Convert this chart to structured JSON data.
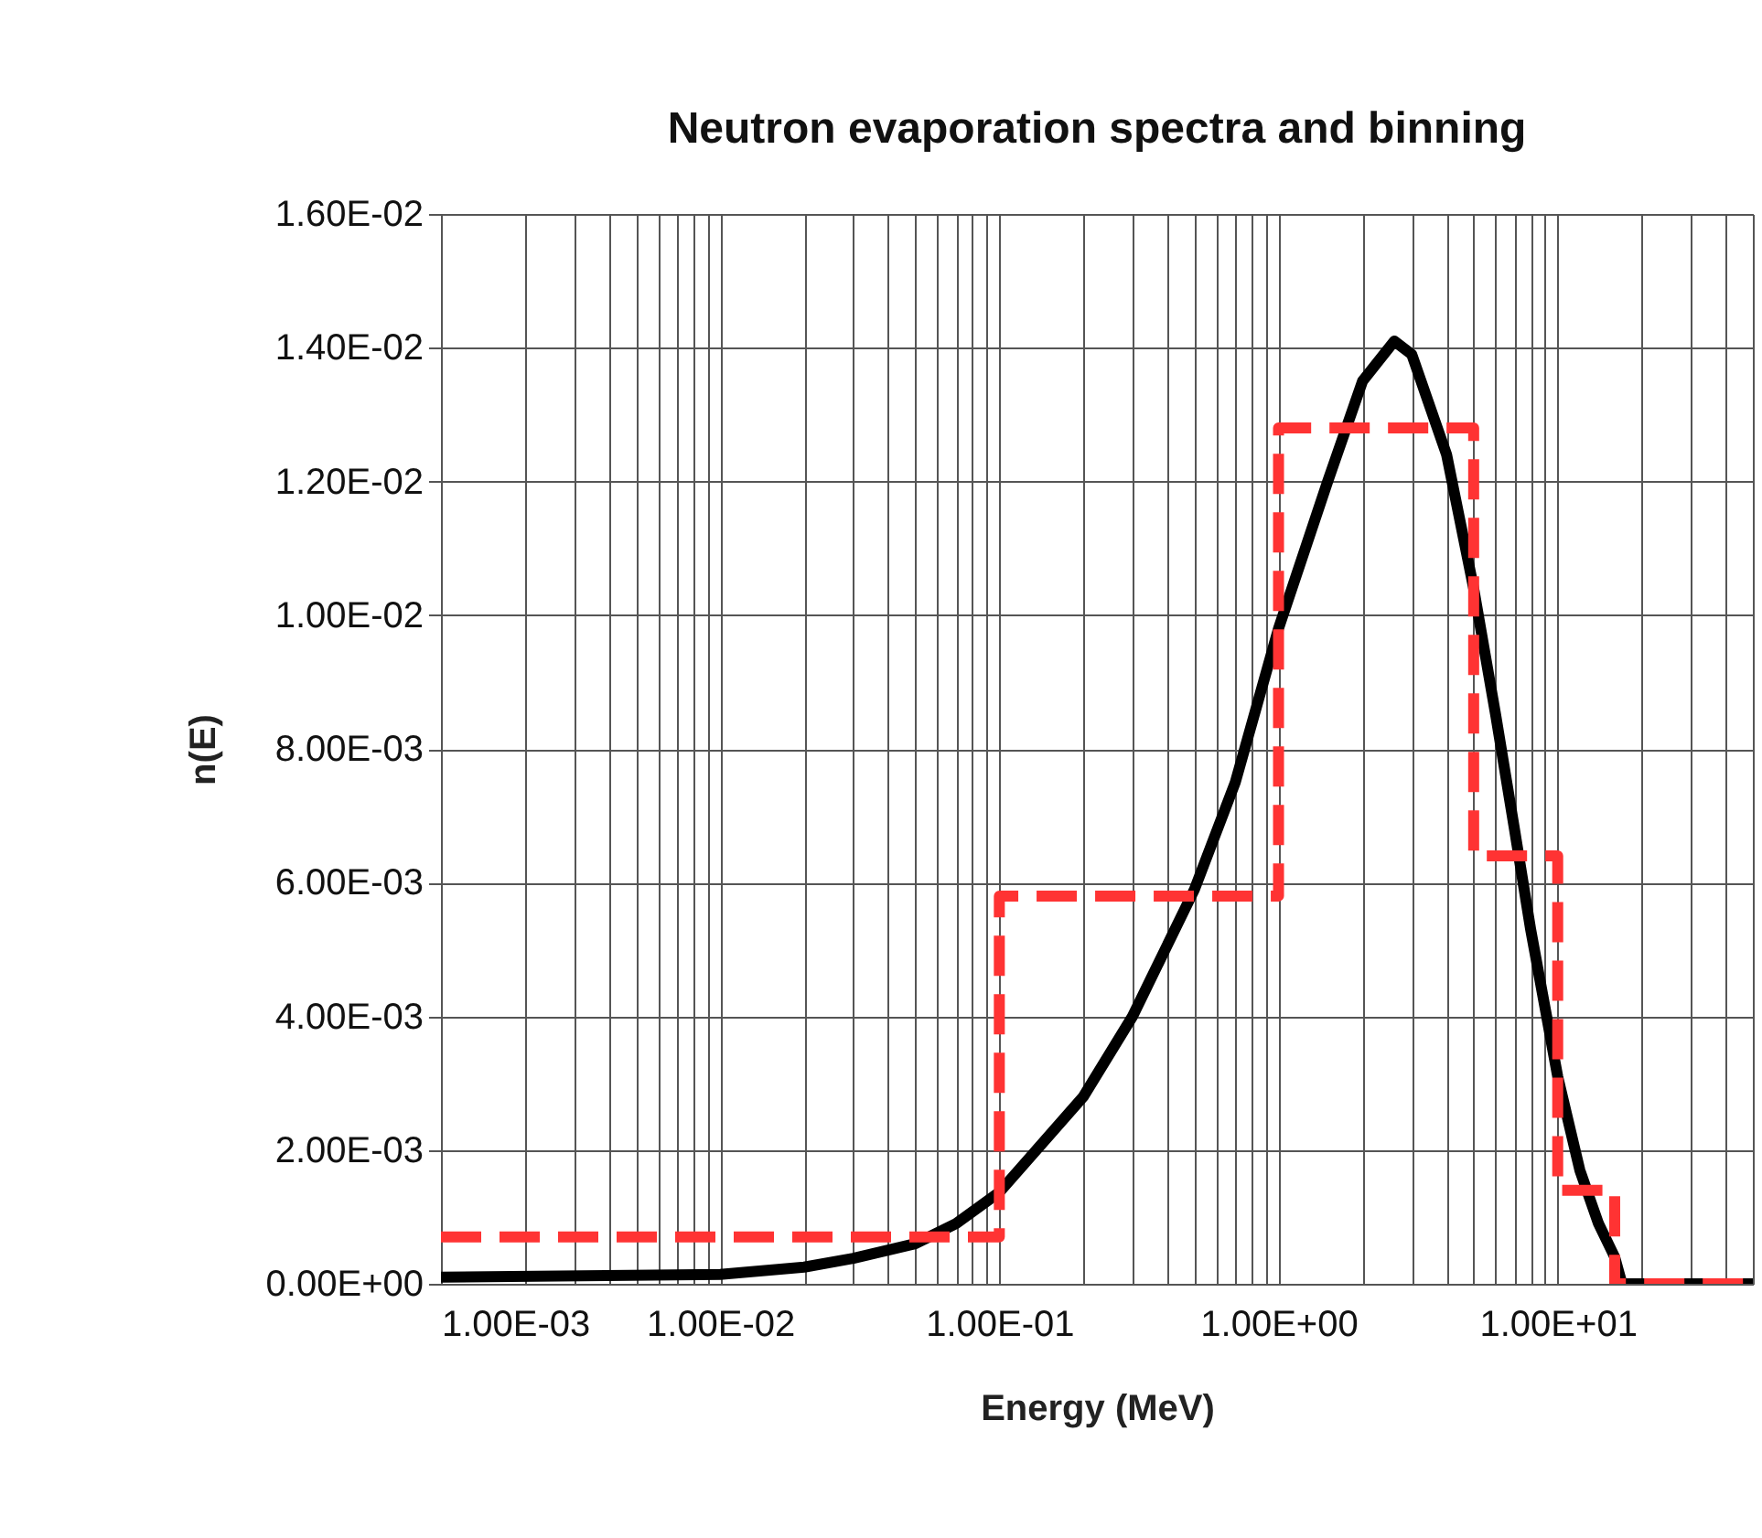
{
  "chart_data": {
    "type": "line",
    "title": "Neutron evaporation spectra and binning",
    "xlabel": "Energy (MeV)",
    "ylabel": "n(E)",
    "log": "x",
    "grid": true,
    "xlim": [
      0.001,
      50
    ],
    "xticks": [
      {
        "value": 0.001,
        "label": "1.00E-03"
      },
      {
        "value": 0.01,
        "label": "1.00E-02"
      },
      {
        "value": 0.1,
        "label": "1.00E-01"
      },
      {
        "value": 1,
        "label": "1.00E+00"
      },
      {
        "value": 10,
        "label": "1.00E+01"
      }
    ],
    "ylim": [
      0,
      0.016
    ],
    "yticks": [
      {
        "value": 0,
        "label": "0.00E+00"
      },
      {
        "value": 0.002,
        "label": "2.00E-03"
      },
      {
        "value": 0.004,
        "label": "4.00E-03"
      },
      {
        "value": 0.006,
        "label": "6.00E-03"
      },
      {
        "value": 0.008,
        "label": "8.00E-03"
      },
      {
        "value": 0.01,
        "label": "1.00E-02"
      },
      {
        "value": 0.012,
        "label": "1.20E-02"
      },
      {
        "value": 0.014,
        "label": "1.40E-02"
      },
      {
        "value": 0.016,
        "label": "1.60E-02"
      }
    ],
    "series": [
      {
        "type": "step",
        "color": "#ff3333",
        "line_style": "dashed",
        "x": [
          0.001,
          0.1,
          1,
          5,
          10,
          16,
          50
        ],
        "values": [
          0.0007,
          0.0058,
          0.0128,
          0.0064,
          0.0014,
          0,
          0
        ]
      },
      {
        "type": "line",
        "color": "#000000",
        "line_style": "solid",
        "x": [
          0.001,
          0.01,
          0.02,
          0.03,
          0.05,
          0.07,
          0.1,
          0.2,
          0.3,
          0.5,
          0.7,
          1,
          1.5,
          2,
          2.6,
          3,
          4,
          5,
          6,
          7,
          8,
          10,
          12,
          14,
          16,
          17,
          50
        ],
        "values": [
          0.0001,
          0.00014,
          0.00025,
          0.00038,
          0.0006,
          0.0009,
          0.00137,
          0.0028,
          0.004,
          0.0059,
          0.0075,
          0.0098,
          0.012,
          0.0135,
          0.0141,
          0.0139,
          0.0124,
          0.0104,
          0.0085,
          0.0068,
          0.0053,
          0.0031,
          0.0017,
          0.0009,
          0.0004,
          0,
          0
        ]
      }
    ]
  }
}
